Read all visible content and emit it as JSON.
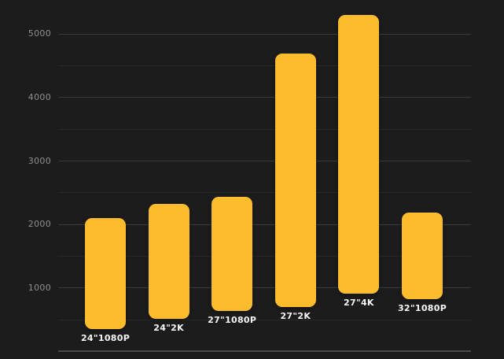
{
  "theme": {
    "background_color": "#1c1c1c",
    "bar_color": "#fdbc2b",
    "axis_label_color": "#8f8f8f",
    "category_label_color": "#f7f7f7",
    "gridline_major_color": "#3a3a3a",
    "gridline_minor_color": "#282828",
    "baseline_color": "#4a4a4a"
  },
  "chart_data": {
    "type": "bar",
    "title": "",
    "xlabel": "",
    "ylabel": "",
    "categories": [
      "24\"1080P",
      "24\"2K",
      "27\"1080P",
      "27\"2K",
      "27\"4K",
      "32\"1080P"
    ],
    "bars": [
      {
        "label": "24\"1080P",
        "low": 350,
        "high": 2100
      },
      {
        "label": "24\"2K",
        "low": 510,
        "high": 2320
      },
      {
        "label": "27\"1080P",
        "low": 630,
        "high": 2430
      },
      {
        "label": "27\"2K",
        "low": 700,
        "high": 4690
      },
      {
        "label": "27\"4K",
        "low": 900,
        "high": 5300
      },
      {
        "label": "32\"1080P",
        "low": 820,
        "high": 2180
      }
    ],
    "bar_style": "floating-rounded",
    "y_ticks": [
      1000,
      2000,
      3000,
      4000,
      5000
    ],
    "gridline_step": 500,
    "grid_max": 5000,
    "ylim": [
      0,
      5500
    ],
    "grid": "on",
    "legend": "none",
    "category_label_position": "below-each-bar"
  }
}
